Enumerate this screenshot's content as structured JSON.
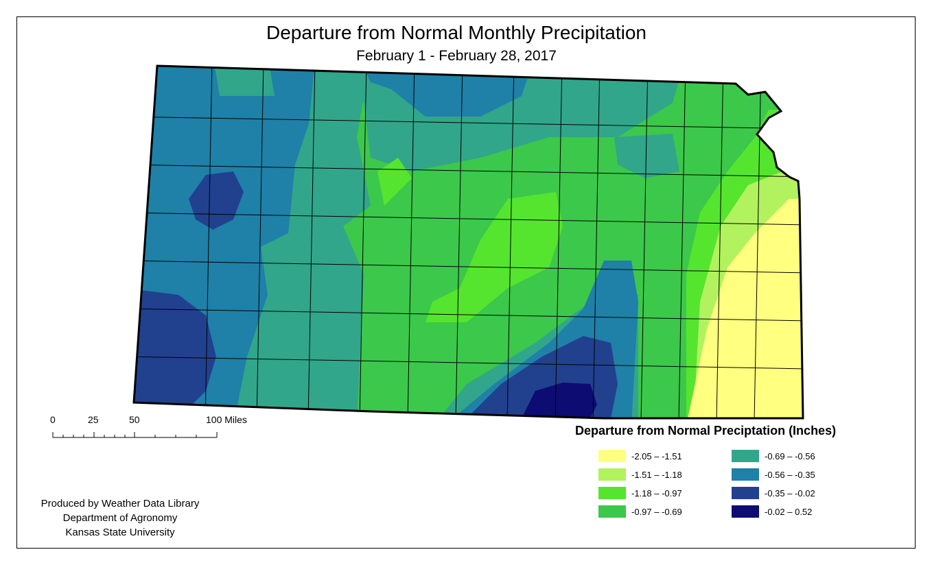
{
  "header": {
    "title": "Departure from Normal Monthly Precipitation",
    "subtitle": "February 1 - February 28, 2017"
  },
  "scale": {
    "labels": [
      "0",
      "25",
      "50",
      "100 Miles"
    ]
  },
  "legend": {
    "title": "Departure from Normal Preciptation (Inches)",
    "items": [
      {
        "label": "-2.05 – -1.51",
        "color": "#ffff80"
      },
      {
        "label": "-1.51 – -1.18",
        "color": "#b2f25e"
      },
      {
        "label": "-1.18 – -0.97",
        "color": "#55e52e"
      },
      {
        "label": "-0.97 – -0.69",
        "color": "#3cc84a"
      },
      {
        "label": "-0.69 – -0.56",
        "color": "#31a68a"
      },
      {
        "label": "-0.56 – -0.35",
        "color": "#1f80a8"
      },
      {
        "label": "-0.35 – -0.02",
        "color": "#21418f"
      },
      {
        "label": "-0.02 – 0.52",
        "color": "#0c0c73"
      }
    ]
  },
  "credit": {
    "line1": "Produced by Weather Data Library",
    "line2": "Department of Agronomy",
    "line3": "Kansas State University"
  }
}
